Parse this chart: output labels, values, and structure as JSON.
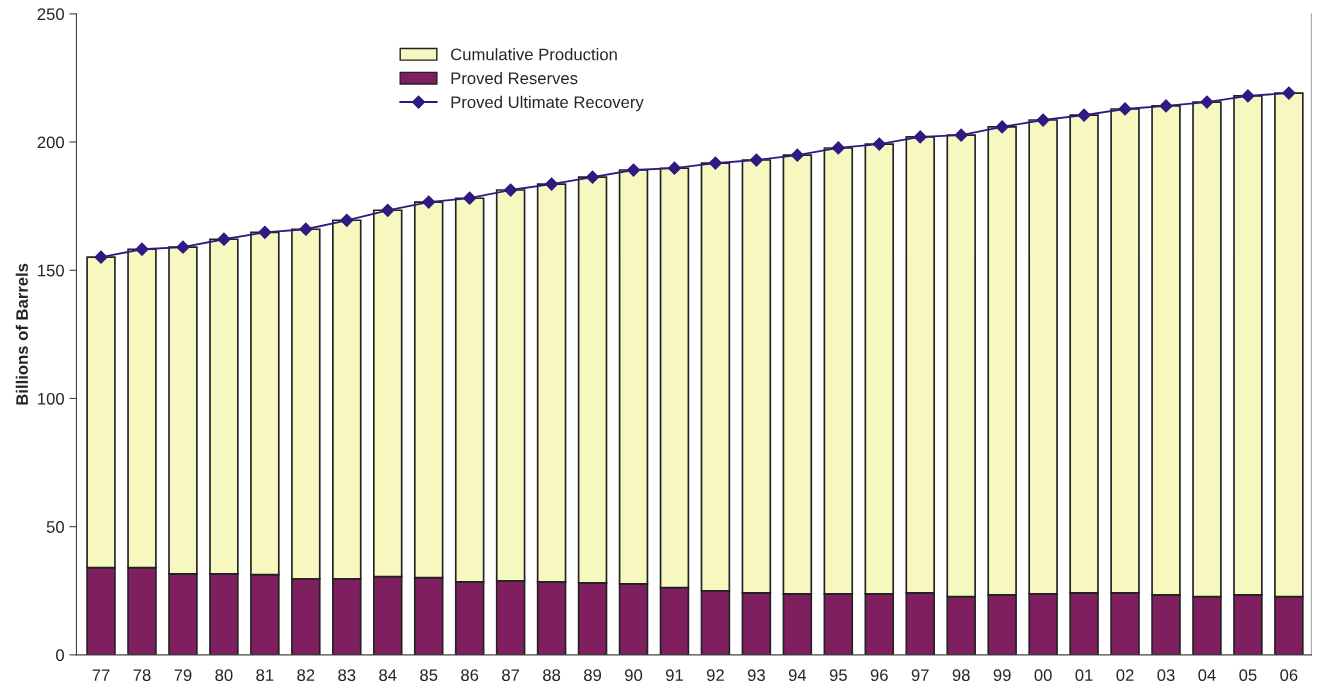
{
  "chart_data": {
    "type": "bar",
    "stacked": true,
    "ylabel": "Billions of Barrels",
    "categories": [
      "77",
      "78",
      "79",
      "80",
      "81",
      "82",
      "83",
      "84",
      "85",
      "86",
      "87",
      "88",
      "89",
      "90",
      "91",
      "92",
      "93",
      "94",
      "95",
      "96",
      "97",
      "98",
      "99",
      "00",
      "01",
      "02",
      "03",
      "04",
      "05",
      "06"
    ],
    "series": [
      {
        "name": "Proved Reserves",
        "color": "#7f1f5f",
        "values": [
          34.0,
          34.0,
          31.6,
          31.6,
          31.3,
          29.7,
          29.7,
          30.5,
          30.1,
          28.5,
          28.9,
          28.5,
          28.1,
          27.7,
          26.2,
          25.0,
          24.2,
          23.8,
          23.8,
          23.8,
          24.2,
          22.7,
          23.4,
          23.8,
          24.2,
          24.2,
          23.4,
          22.7,
          23.4,
          22.7
        ]
      },
      {
        "name": "Cumulative Production",
        "color": "#f7f7c0",
        "values": [
          121.1,
          124.2,
          127.4,
          130.5,
          133.5,
          136.3,
          139.8,
          142.9,
          146.5,
          149.6,
          152.4,
          155.1,
          158.2,
          161.4,
          163.6,
          166.8,
          168.8,
          171.1,
          173.9,
          175.4,
          177.8,
          180.0,
          182.5,
          184.8,
          186.3,
          188.7,
          190.7,
          192.9,
          194.6,
          196.4
        ]
      },
      {
        "name": "Proved Ultimate Recovery",
        "type": "line",
        "color": "#2e1a80",
        "marker": "diamond",
        "values": [
          155.1,
          158.2,
          159.0,
          162.1,
          164.8,
          166.0,
          169.5,
          173.4,
          176.6,
          178.1,
          181.3,
          183.6,
          186.3,
          189.1,
          189.8,
          191.8,
          193.0,
          194.9,
          197.7,
          199.2,
          202.0,
          202.7,
          205.9,
          208.6,
          210.5,
          212.9,
          214.1,
          215.6,
          218.0,
          219.1
        ]
      }
    ],
    "ylim": [
      0,
      250
    ],
    "yticks": [
      0,
      50,
      100,
      150,
      200,
      250
    ],
    "grid": false,
    "legend": "top left"
  }
}
